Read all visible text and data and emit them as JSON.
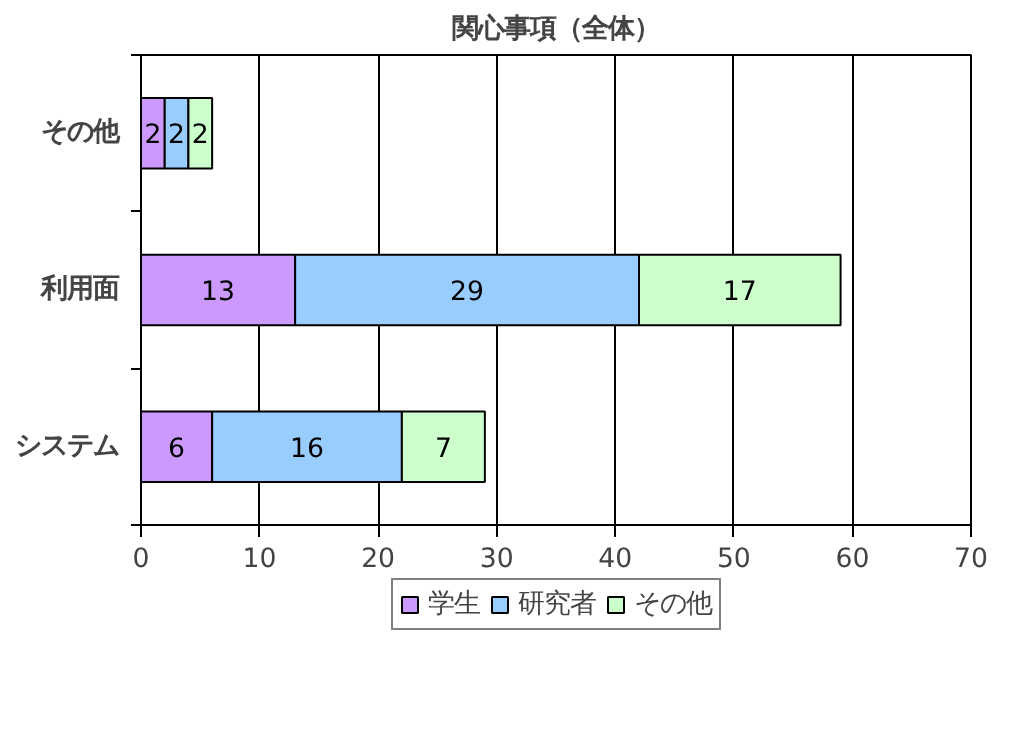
{
  "chart_data": {
    "type": "bar",
    "orientation": "horizontal",
    "stacked": true,
    "title": "関心事項（全体）",
    "categories": [
      "その他",
      "利用面",
      "システム"
    ],
    "series": [
      {
        "name": "学生",
        "color": "#cc99ff",
        "values": [
          2,
          13,
          6
        ]
      },
      {
        "name": "研究者",
        "color": "#99ccff",
        "values": [
          2,
          29,
          16
        ]
      },
      {
        "name": "その他",
        "color": "#ccffcc",
        "values": [
          2,
          17,
          7
        ]
      }
    ],
    "xlim": [
      0,
      70
    ],
    "xticks": [
      0,
      10,
      20,
      30,
      40,
      50,
      60,
      70
    ],
    "grid": "x",
    "legend": "bottom",
    "data_labels": true
  }
}
